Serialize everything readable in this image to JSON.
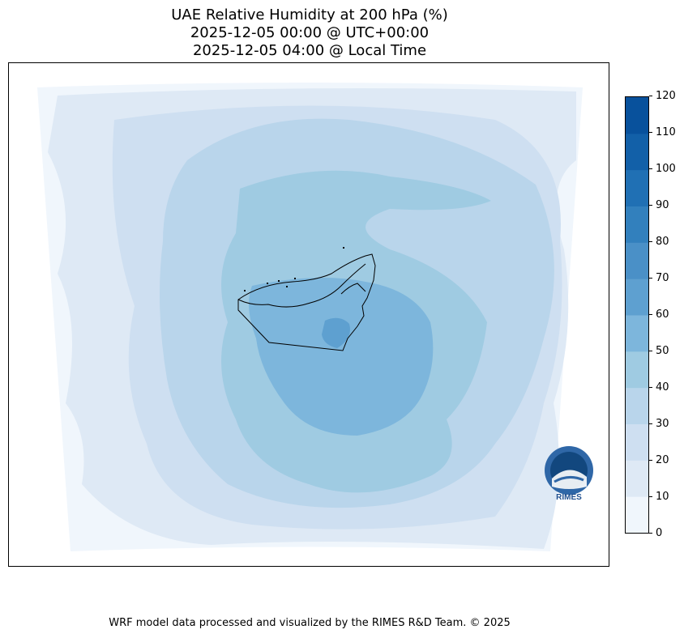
{
  "title": {
    "line1": "UAE Relative Humidity at 200 hPa (%)",
    "line2": "2025-12-05 00:00 @ UTC+00:00",
    "line3": "2025-12-05 04:00 @ Local Time"
  },
  "map": {
    "variable": "Relative Humidity",
    "level": "200 hPa",
    "unit": "%",
    "region": "UAE",
    "fill_colors": {
      "lt10": "#f0f6fc",
      "10_20": "#dee9f5",
      "20_30": "#cedff1",
      "30_40": "#b9d5eb",
      "40_50": "#9fcbe2",
      "50_60": "#7db6dc",
      "60_70": "#5ea0d0",
      "border": "#000000"
    }
  },
  "colorbar": {
    "ticks": [
      "0",
      "10",
      "20",
      "30",
      "40",
      "50",
      "60",
      "70",
      "80",
      "90",
      "100",
      "110",
      "120"
    ],
    "min": 0,
    "max": 120,
    "step": 10,
    "colors": [
      "#f0f6fc",
      "#dee9f5",
      "#cedff1",
      "#b9d5eb",
      "#9fcbe2",
      "#7db6dc",
      "#5ea0d0",
      "#4a90c7",
      "#3280bd",
      "#2070b4",
      "#1260a8",
      "#08519c",
      "#08306b"
    ]
  },
  "logo": {
    "text": "RIMES",
    "ring_text": "Regional Integrated Multi-Hazard Early Warning System"
  },
  "footer": {
    "text": "WRF model data processed and visualized by the RIMES R&D Team. © 2025"
  }
}
